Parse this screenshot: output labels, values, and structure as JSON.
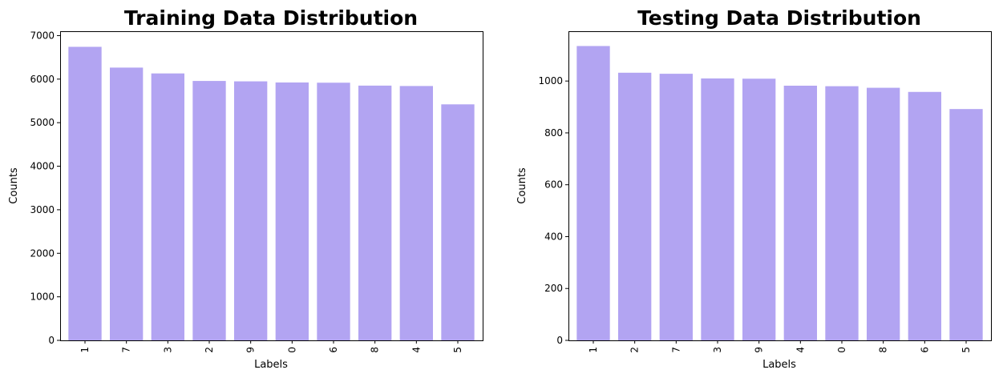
{
  "colors": {
    "bar": "#b2a4f2"
  },
  "chart_data": [
    {
      "type": "bar",
      "title": "Training Data Distribution",
      "xlabel": "Labels",
      "ylabel": "Counts",
      "ylim": [
        0,
        7100
      ],
      "yticks": [
        0,
        1000,
        2000,
        3000,
        4000,
        5000,
        6000,
        7000
      ],
      "categories": [
        "1",
        "7",
        "3",
        "2",
        "9",
        "0",
        "6",
        "8",
        "4",
        "5"
      ],
      "values": [
        6742,
        6265,
        6131,
        5958,
        5949,
        5923,
        5918,
        5851,
        5842,
        5421
      ],
      "grid": false,
      "legend": "none"
    },
    {
      "type": "bar",
      "title": "Testing Data Distribution",
      "xlabel": "Labels",
      "ylabel": "Counts",
      "ylim": [
        0,
        1192
      ],
      "yticks": [
        0,
        200,
        400,
        600,
        800,
        1000
      ],
      "categories": [
        "1",
        "2",
        "7",
        "3",
        "9",
        "4",
        "0",
        "8",
        "6",
        "5"
      ],
      "values": [
        1135,
        1032,
        1028,
        1010,
        1009,
        982,
        980,
        974,
        958,
        892
      ],
      "grid": false,
      "legend": "none"
    }
  ]
}
